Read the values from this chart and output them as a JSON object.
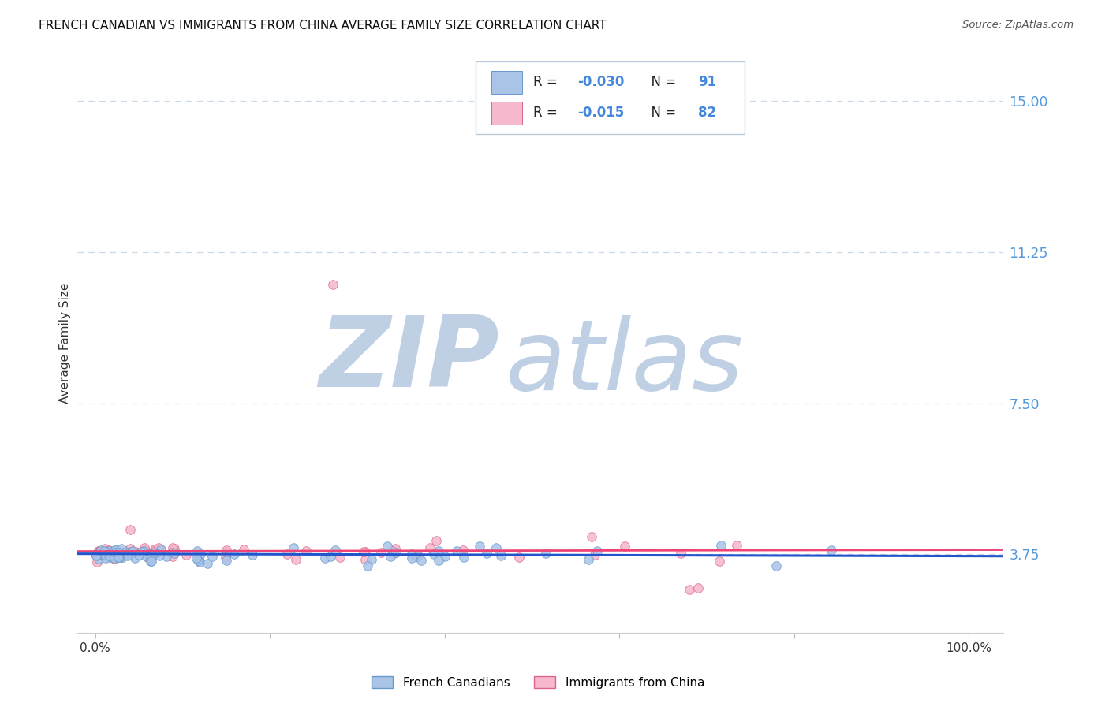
{
  "title": "FRENCH CANADIAN VS IMMIGRANTS FROM CHINA AVERAGE FAMILY SIZE CORRELATION CHART",
  "source": "Source: ZipAtlas.com",
  "ylabel": "Average Family Size",
  "y_ticks": [
    3.75,
    7.5,
    11.25,
    15.0
  ],
  "ylim": [
    1.8,
    16.2
  ],
  "xlim": [
    -0.02,
    1.04
  ],
  "series1_label": "French Canadians",
  "series1_R": "-0.030",
  "series1_N": "91",
  "series1_color": "#aac4e8",
  "series1_edge": "#6699cc",
  "series2_label": "Immigrants from China",
  "series2_R": "-0.015",
  "series2_N": "82",
  "series2_color": "#f5b8cc",
  "series2_edge": "#dd6688",
  "trend1_color": "#2255cc",
  "trend2_color": "#ee4477",
  "axis_color": "#5599dd",
  "grid_color": "#c8d8ec",
  "watermark_zip_color": "#c0d0e4",
  "watermark_atlas_color": "#c0d0e4",
  "background_color": "#ffffff",
  "title_fontsize": 11,
  "tick_fontsize": 12.5,
  "legend_text_color": "#222222",
  "legend_value_color": "#4488dd",
  "legend_box_edge": "#bbccdd"
}
